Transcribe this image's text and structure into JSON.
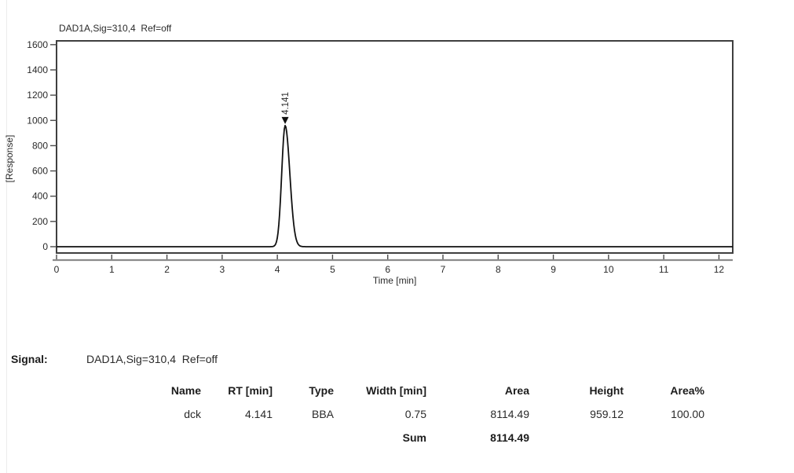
{
  "chart_data": {
    "type": "line",
    "title": "DAD1A,Sig=310,4  Ref=off",
    "xlabel": "Time [min]",
    "ylabel": "[Response]",
    "x_ticks": [
      0,
      1,
      2,
      3,
      4,
      5,
      6,
      7,
      8,
      9,
      10,
      11,
      12
    ],
    "y_ticks": [
      0,
      200,
      400,
      600,
      800,
      1000,
      1200,
      1400,
      1600
    ],
    "xlim": [
      0,
      12.25
    ],
    "ylim": [
      -50,
      1630
    ],
    "grid": false,
    "baseline_value": 0,
    "series": [
      {
        "name": "DAD1A signal",
        "peaks": [
          {
            "rt": 4.141,
            "height": 959.12,
            "label": "4.141",
            "sigma_left_min": 0.062,
            "sigma_right_min": 0.085
          }
        ]
      }
    ]
  },
  "signal": {
    "label": "Signal:",
    "value": "DAD1A,Sig=310,4  Ref=off"
  },
  "peak_table": {
    "headers": [
      "Name",
      "RT [min]",
      "Type",
      "Width [min]",
      "Area",
      "Height",
      "Area%"
    ],
    "rows": [
      {
        "name": "dck",
        "rt": "4.141",
        "type": "BBA",
        "width": "0.75",
        "area": "8114.49",
        "height": "959.12",
        "area_pct": "100.00"
      }
    ],
    "sum_label": "Sum",
    "sum_area": "8114.49"
  },
  "colors": {
    "trace": "#111111",
    "frame": "#3f3f3f",
    "axis_ruler": "#8b8b8b",
    "tick": "#4a4a4a",
    "text": "#2a2a2a"
  }
}
